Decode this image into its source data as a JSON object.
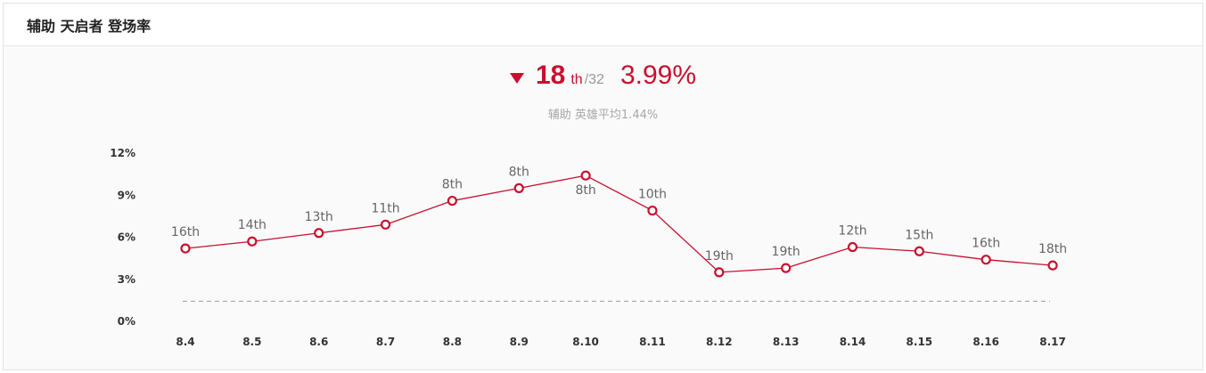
{
  "header": {
    "title": "辅助 天启者 登场率"
  },
  "summary": {
    "rank": "18",
    "rank_suffix": "th",
    "rank_total": "/32",
    "rate": "3.99%",
    "avg_text": "辅助 英雄平均1.44%",
    "trend_icon": "triangle-down-icon"
  },
  "colors": {
    "accent": "#c8102e",
    "avg_line": "#9a9a9a"
  },
  "chart_data": {
    "type": "line",
    "categories": [
      "8.4",
      "8.5",
      "8.6",
      "8.7",
      "8.8",
      "8.9",
      "8.10",
      "8.11",
      "8.12",
      "8.13",
      "8.14",
      "8.15",
      "8.16",
      "8.17"
    ],
    "series": [
      {
        "values": [
          5.2,
          5.7,
          6.3,
          6.9,
          8.6,
          9.5,
          10.4,
          7.9,
          3.5,
          3.8,
          5.3,
          5.0,
          4.4,
          3.99
        ],
        "labels": [
          "16th",
          "14th",
          "13th",
          "11th",
          "8th",
          "8th",
          "8th",
          "10th",
          "19th",
          "19th",
          "12th",
          "15th",
          "16th",
          "18th"
        ]
      }
    ],
    "reference_line": {
      "value": 1.44,
      "style": "dashed"
    },
    "y_ticks": [
      "0%",
      "3%",
      "6%",
      "9%",
      "12%"
    ],
    "ylim": [
      0,
      12
    ],
    "grid": false,
    "legend": "none"
  }
}
